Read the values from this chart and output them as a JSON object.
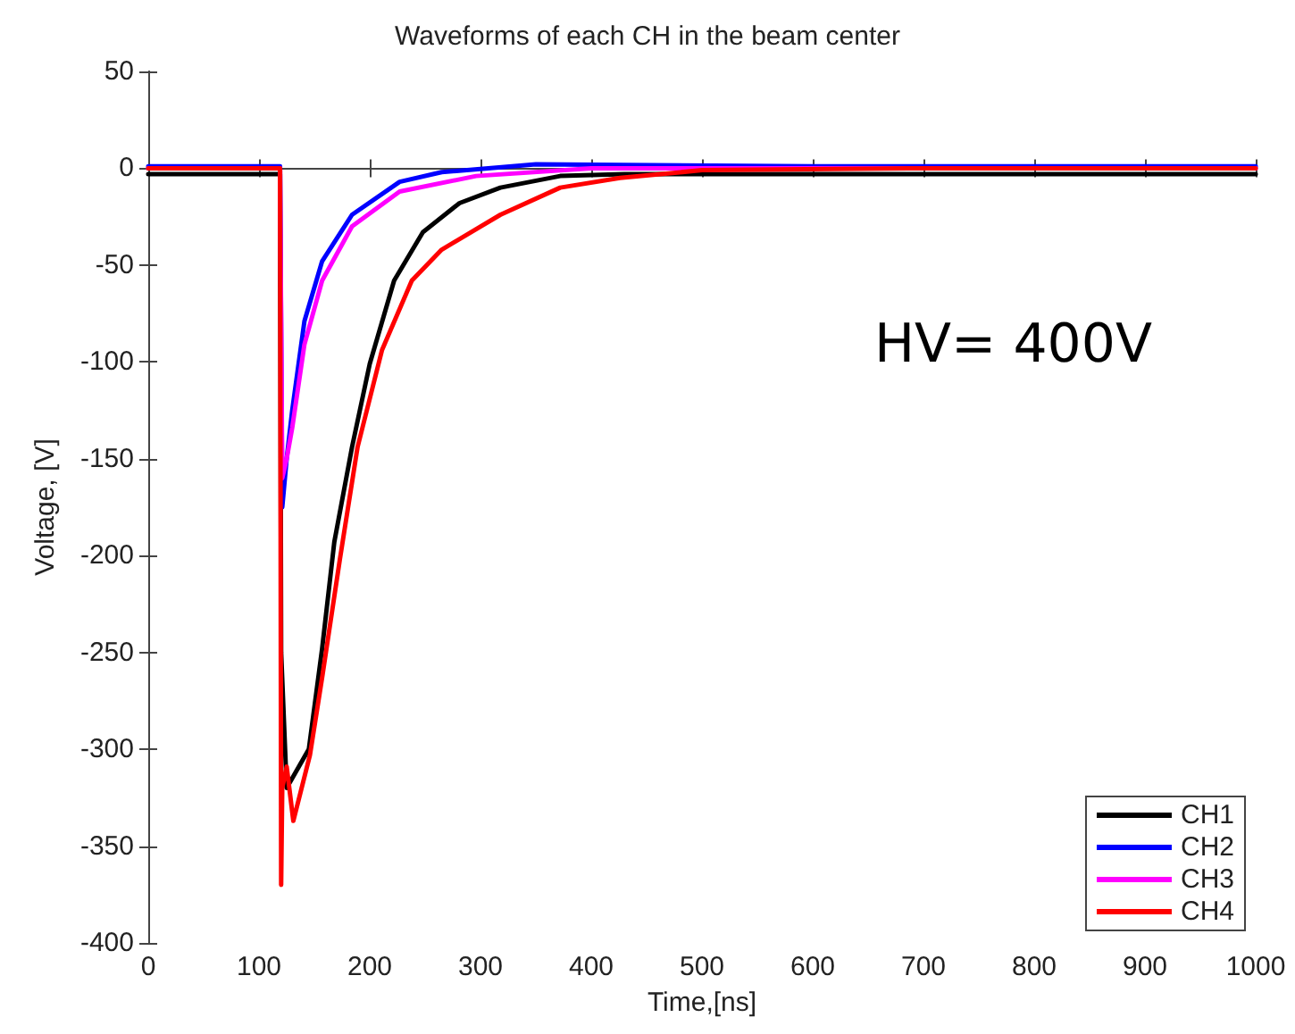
{
  "chart_data": {
    "type": "line",
    "title": "Waveforms of each CH in the beam center",
    "xlabel": "Time,[ns]",
    "ylabel": "Voltage, [V]",
    "xlim": [
      0,
      1000
    ],
    "xticks": [
      0,
      100,
      200,
      300,
      400,
      500,
      600,
      700,
      800,
      900,
      1000
    ],
    "ylim": [
      -400,
      50
    ],
    "yticks": [
      -400,
      -350,
      -300,
      -250,
      -200,
      -150,
      -100,
      -50,
      0,
      50
    ],
    "grid": false,
    "legend": "bottom right",
    "line_style": "solid",
    "marker": "none",
    "annotations": [
      "HV= 400V"
    ],
    "series": [
      {
        "name": "CH1",
        "color": "#000000",
        "x": [
          0,
          119,
          120,
          125,
          145,
          157,
          168,
          184,
          200,
          222,
          248,
          281,
          318,
          372,
          430,
          600,
          800,
          1000
        ],
        "values": [
          -3,
          -3,
          -250,
          -320,
          -300,
          -248,
          -193,
          -144,
          -101,
          -58,
          -33,
          -18,
          -10,
          -4,
          -3,
          -3,
          -3,
          -3
        ]
      },
      {
        "name": "CH2",
        "color": "#0000ff",
        "x": [
          0,
          119,
          121,
          125,
          130,
          141,
          157,
          184,
          227,
          265,
          350,
          600,
          800,
          1000
        ],
        "values": [
          1,
          1,
          -175,
          -150,
          -125,
          -79,
          -48,
          -24,
          -7,
          -2,
          2,
          1,
          1,
          1
        ]
      },
      {
        "name": "CH3",
        "color": "#ff00ff",
        "x": [
          0,
          119,
          121,
          125,
          130,
          141,
          157,
          184,
          227,
          296,
          400,
          600,
          800,
          1000
        ],
        "values": [
          0,
          0,
          -160,
          -150,
          -134,
          -91,
          -58,
          -30,
          -12,
          -4,
          0,
          0,
          0,
          0
        ]
      },
      {
        "name": "CH4",
        "color": "#ff0000",
        "x": [
          0,
          119,
          120,
          121,
          125,
          131,
          146,
          157,
          173,
          189,
          211,
          238,
          265,
          318,
          372,
          426,
          500,
          700,
          1000
        ],
        "values": [
          0,
          0,
          -370,
          -320,
          -309,
          -337,
          -303,
          -263,
          -202,
          -144,
          -94,
          -58,
          -42,
          -24,
          -10,
          -5,
          -1,
          0,
          0
        ]
      }
    ]
  }
}
